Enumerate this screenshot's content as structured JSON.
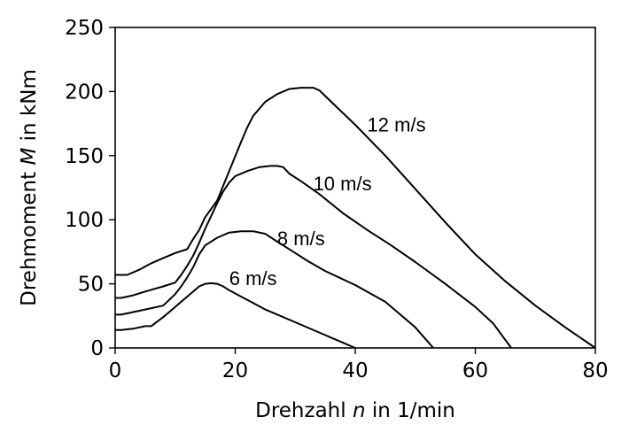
{
  "chart_data": {
    "type": "line",
    "xlabel": {
      "pre": "Drehzahl ",
      "var": "n",
      "post": " in 1/min"
    },
    "ylabel": {
      "pre": "Drehmoment ",
      "var": "M",
      "post": " in kNm"
    },
    "xlim": [
      0,
      80
    ],
    "ylim": [
      0,
      250
    ],
    "xticks": [
      0,
      20,
      40,
      60,
      80
    ],
    "yticks": [
      0,
      50,
      100,
      150,
      200,
      250
    ],
    "grid": false,
    "series": [
      {
        "name": "6 m/s",
        "label_at": [
          19,
          49
        ],
        "points": [
          [
            0,
            14
          ],
          [
            1,
            14
          ],
          [
            3,
            15
          ],
          [
            5,
            17
          ],
          [
            6,
            17
          ],
          [
            8,
            24
          ],
          [
            9,
            28
          ],
          [
            11,
            36
          ],
          [
            13,
            44
          ],
          [
            14,
            48
          ],
          [
            15,
            50
          ],
          [
            16,
            50.5
          ],
          [
            17,
            50
          ],
          [
            18,
            48
          ],
          [
            19,
            45
          ],
          [
            21,
            40
          ],
          [
            23,
            35
          ],
          [
            25,
            30
          ],
          [
            30,
            20
          ],
          [
            35,
            10
          ],
          [
            38,
            4
          ],
          [
            40,
            0
          ]
        ]
      },
      {
        "name": "8 m/s",
        "label_at": [
          27,
          80
        ],
        "points": [
          [
            0,
            26
          ],
          [
            1,
            26
          ],
          [
            3,
            28
          ],
          [
            5,
            30
          ],
          [
            7,
            32
          ],
          [
            8,
            33
          ],
          [
            10,
            42
          ],
          [
            11,
            48
          ],
          [
            12,
            55
          ],
          [
            13,
            63
          ],
          [
            14,
            73
          ],
          [
            15,
            80
          ],
          [
            17,
            86
          ],
          [
            19,
            90
          ],
          [
            21,
            91
          ],
          [
            23,
            91
          ],
          [
            25,
            89
          ],
          [
            26,
            86
          ],
          [
            28,
            80
          ],
          [
            30,
            74
          ],
          [
            32,
            68
          ],
          [
            35,
            60
          ],
          [
            40,
            49
          ],
          [
            45,
            36
          ],
          [
            50,
            16
          ],
          [
            53,
            0
          ]
        ]
      },
      {
        "name": "10 m/s",
        "label_at": [
          33,
          123
        ],
        "points": [
          [
            0,
            39
          ],
          [
            1,
            39
          ],
          [
            3,
            41
          ],
          [
            5,
            44
          ],
          [
            8,
            48
          ],
          [
            10,
            51
          ],
          [
            11,
            57
          ],
          [
            12,
            64
          ],
          [
            13,
            72
          ],
          [
            14,
            82
          ],
          [
            15,
            93
          ],
          [
            16,
            103
          ],
          [
            17,
            113
          ],
          [
            18,
            122
          ],
          [
            19,
            129
          ],
          [
            20,
            134
          ],
          [
            22,
            138
          ],
          [
            24,
            141
          ],
          [
            26,
            142
          ],
          [
            27,
            142
          ],
          [
            28,
            141
          ],
          [
            29,
            136
          ],
          [
            31,
            130
          ],
          [
            34,
            120
          ],
          [
            38,
            105
          ],
          [
            42,
            92
          ],
          [
            46,
            80
          ],
          [
            50,
            67
          ],
          [
            55,
            50
          ],
          [
            60,
            32
          ],
          [
            63,
            19
          ],
          [
            66,
            0
          ]
        ]
      },
      {
        "name": "12 m/s",
        "label_at": [
          42,
          169
        ],
        "points": [
          [
            0,
            57
          ],
          [
            1,
            57
          ],
          [
            2,
            57
          ],
          [
            4,
            61
          ],
          [
            6,
            66
          ],
          [
            8,
            70
          ],
          [
            10,
            74
          ],
          [
            12,
            77
          ],
          [
            13,
            85
          ],
          [
            14,
            92
          ],
          [
            15,
            102
          ],
          [
            17,
            115
          ],
          [
            19,
            138
          ],
          [
            21,
            161
          ],
          [
            22,
            172
          ],
          [
            23,
            181
          ],
          [
            25,
            192
          ],
          [
            27,
            198
          ],
          [
            29,
            202
          ],
          [
            31,
            203
          ],
          [
            33,
            203
          ],
          [
            34,
            201
          ],
          [
            36,
            192
          ],
          [
            38,
            183
          ],
          [
            40,
            174
          ],
          [
            45,
            150
          ],
          [
            50,
            124
          ],
          [
            55,
            98
          ],
          [
            60,
            73
          ],
          [
            65,
            52
          ],
          [
            70,
            33
          ],
          [
            75,
            16
          ],
          [
            80,
            0
          ]
        ]
      }
    ]
  }
}
